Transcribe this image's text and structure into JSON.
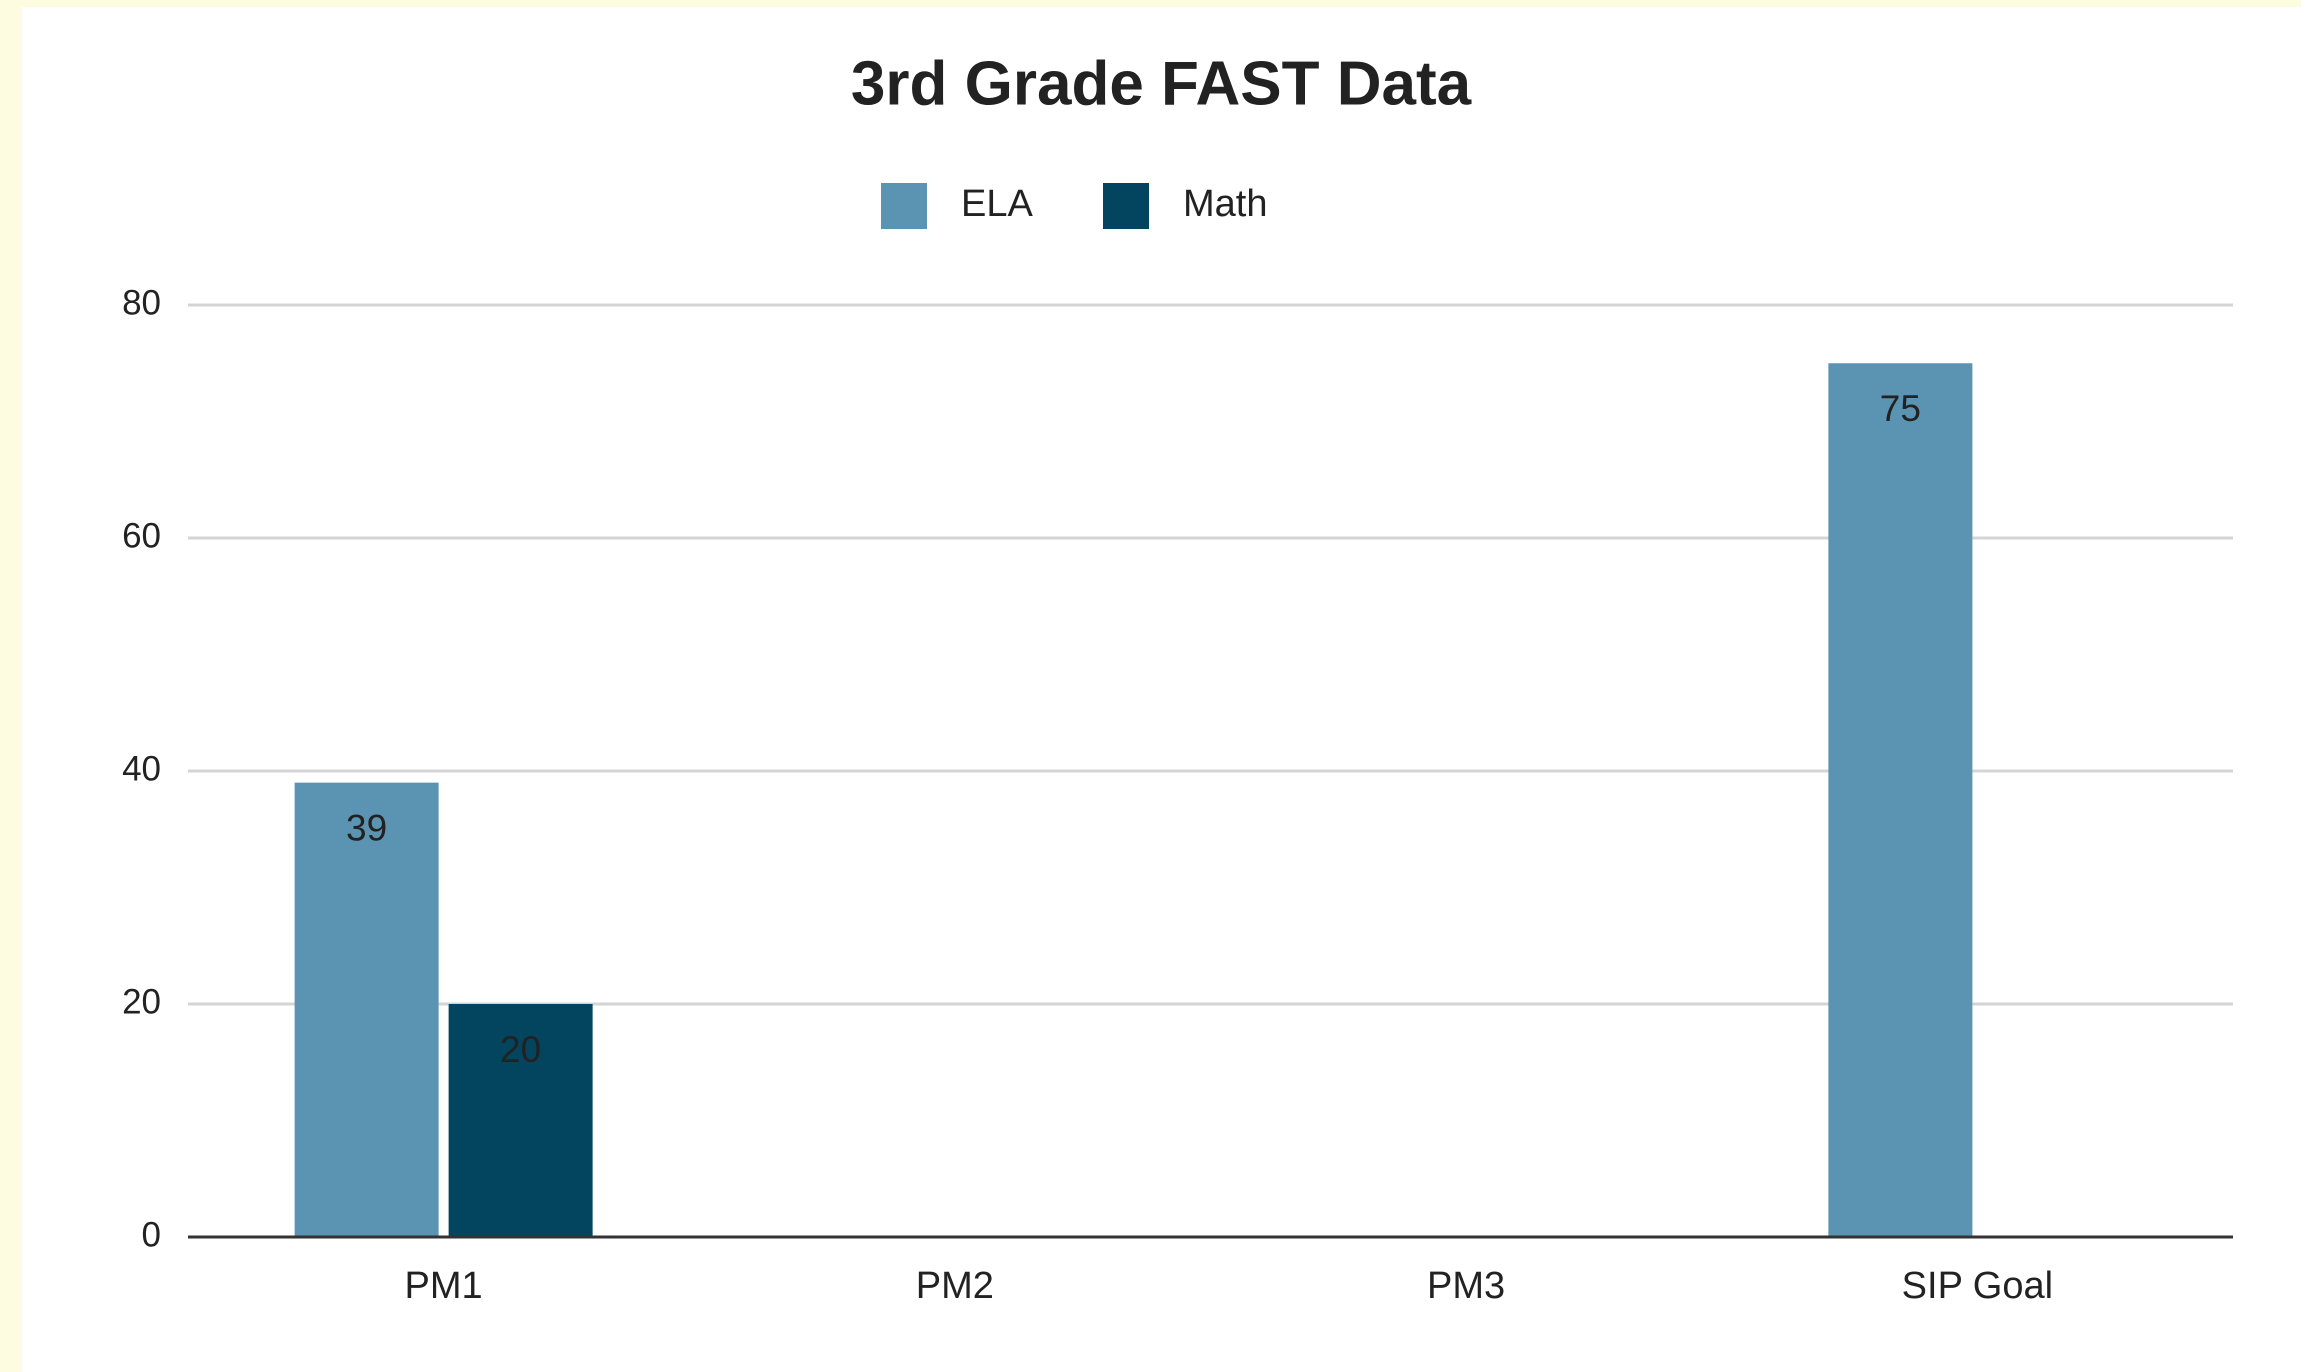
{
  "chart_data": {
    "type": "bar",
    "title": "3rd Grade FAST Data",
    "categories": [
      "PM1",
      "PM2",
      "PM3",
      "SIP Goal"
    ],
    "series": [
      {
        "name": "ELA",
        "color": "#5b93b3",
        "values": [
          39,
          null,
          null,
          75
        ]
      },
      {
        "name": "Math",
        "color": "#03445f",
        "values": [
          20,
          null,
          null,
          null
        ]
      }
    ],
    "ylim": [
      0,
      80
    ],
    "yticks": [
      0,
      20,
      40,
      60,
      80
    ],
    "grid": true,
    "legend": "top",
    "data_labels": true
  }
}
